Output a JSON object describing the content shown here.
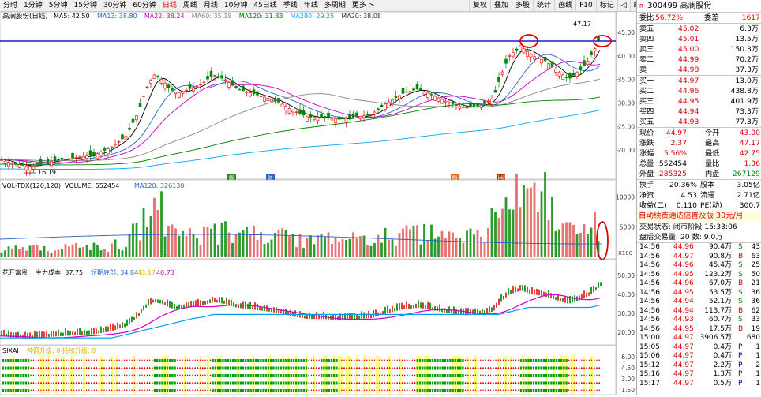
{
  "toolbar": {
    "periods": [
      "分时",
      "1分钟",
      "5分钟",
      "15分钟",
      "30分钟",
      "60分钟",
      "日线",
      "周线",
      "月线",
      "10分钟",
      "45日线",
      "季线",
      "年线",
      "多周期",
      "更多 >"
    ],
    "active_period": "日线",
    "tools": [
      "复权",
      "叠加",
      "多股",
      "统计",
      "画线",
      "F10",
      "标记",
      "◁",
      "⊠",
      "<",
      "◎",
      "退出"
    ]
  },
  "main_chart": {
    "title": "高澜股份(日线)",
    "ma": [
      {
        "label": "MA5: 42.50",
        "color": "#000000"
      },
      {
        "label": "MA13: 38.80",
        "color": "#2a63c9"
      },
      {
        "label": "MA22: 38.24",
        "color": "#c800c8"
      },
      {
        "label": "MA60: 35.18",
        "color": "#888888"
      },
      {
        "label": "MA120: 31.83",
        "color": "#008000"
      },
      {
        "label": "MA280: 29.25",
        "color": "#00aaff"
      },
      {
        "label": "MA20: 38.08",
        "color": "#333333"
      }
    ],
    "y_ticks": [
      "45.00",
      "40.00",
      "35.00",
      "30.00",
      "25.00",
      "20.00"
    ],
    "high_label": "47.17",
    "low_label": "16.19",
    "markers": [
      "紧",
      "财",
      "指",
      "业绩"
    ]
  },
  "volume_chart": {
    "title": "VOL-TDX(120,120)",
    "volume_label": "VOLUME: 552454",
    "ma_label": "MA120: 326130",
    "y_ticks": [
      "10000",
      "5000"
    ],
    "unit": "X100"
  },
  "cost_chart": {
    "title": "花开富贵",
    "cost_label": "主力成本: 37.75",
    "bottom_label": "短期底部: 34.84",
    "v1": "43.17",
    "v2": "40.73",
    "y_ticks": [
      "50.00",
      "40.00",
      "30.00",
      "20.00"
    ]
  },
  "signal_chart": {
    "title": "SIXAI",
    "legend": "神箭升级: 0 持续升级: 0",
    "y_ticks": [
      "6.00",
      "4.50",
      "3.00",
      "1.50"
    ]
  },
  "stock": {
    "code": "300499",
    "name": "高澜股份"
  },
  "order_ratio": {
    "l1": "委比",
    "v1": "56.72%",
    "l2": "委差",
    "v2": "1617"
  },
  "asks": [
    {
      "label": "卖五",
      "price": "45.02",
      "vol": "6.3万"
    },
    {
      "label": "卖四",
      "price": "45.01",
      "vol": "13.5万"
    },
    {
      "label": "卖三",
      "price": "45.00",
      "vol": "150.3万"
    },
    {
      "label": "卖二",
      "price": "44.99",
      "vol": "70.2万"
    },
    {
      "label": "卖一",
      "price": "44.98",
      "vol": "37.3万"
    }
  ],
  "bids": [
    {
      "label": "买一",
      "price": "44.97",
      "vol": "13.0万"
    },
    {
      "label": "买二",
      "price": "44.96",
      "vol": "438.8万"
    },
    {
      "label": "买三",
      "price": "44.95",
      "vol": "401.9万"
    },
    {
      "label": "买四",
      "price": "44.94",
      "vol": "73.3万"
    },
    {
      "label": "买五",
      "price": "44.93",
      "vol": "77.3万"
    }
  ],
  "quote": [
    {
      "l1": "现价",
      "v1": "44.97",
      "c1": "red",
      "l2": "今开",
      "v2": "43.00",
      "c2": "red"
    },
    {
      "l1": "涨跌",
      "v1": "2.37",
      "c1": "red",
      "l2": "最高",
      "v2": "47.17",
      "c2": "red"
    },
    {
      "l1": "涨幅",
      "v1": "5.56%",
      "c1": "red",
      "l2": "最低",
      "v2": "42.75",
      "c2": "red"
    },
    {
      "l1": "总量",
      "v1": "552454",
      "c1": "",
      "l2": "量比",
      "v2": "1.36",
      "c2": "red"
    },
    {
      "l1": "外盘",
      "v1": "285325",
      "c1": "red",
      "l2": "内盘",
      "v2": "267129",
      "c2": "green"
    }
  ],
  "fundamentals": [
    {
      "l1": "换手",
      "v1": "20.36%",
      "l2": "股本",
      "v2": "3.05亿"
    },
    {
      "l1": "净资",
      "v1": "4.53",
      "l2": "流通",
      "v2": "2.71亿"
    },
    {
      "l1": "收益(二)",
      "v1": "0.110",
      "l2": "PE(动)",
      "v2": "300.7"
    }
  ],
  "banner": "自动续费通达信普及版  30元/月",
  "trade_status": "交易状态: 闭市阶段 15:33:06",
  "after_hours": "盘后交易量: 20  数: 9.0万",
  "trades": [
    {
      "t": "14:56",
      "p": "44.96",
      "v": "90.4万",
      "s": "S",
      "n": "43"
    },
    {
      "t": "14:56",
      "p": "44.97",
      "v": "90.8万",
      "s": "B",
      "n": "63"
    },
    {
      "t": "14:56",
      "p": "44.96",
      "v": "45.4万",
      "s": "S",
      "n": "25"
    },
    {
      "t": "14:56",
      "p": "44.95",
      "v": "123.2万",
      "s": "S",
      "n": "50"
    },
    {
      "t": "14:56",
      "p": "44.96",
      "v": "67.0万",
      "s": "B",
      "n": "21"
    },
    {
      "t": "14:56",
      "p": "44.95",
      "v": "53.5万",
      "s": "S",
      "n": "36"
    },
    {
      "t": "14:56",
      "p": "44.94",
      "v": "52.1万",
      "s": "S",
      "n": "36"
    },
    {
      "t": "14:56",
      "p": "44.94",
      "v": "113.7万",
      "s": "B",
      "n": "62"
    },
    {
      "t": "14:56",
      "p": "44.93",
      "v": "60.7万",
      "s": "S",
      "n": "33"
    },
    {
      "t": "14:56",
      "p": "44.95",
      "v": "17.5万",
      "s": "B",
      "n": "19"
    },
    {
      "t": "15:00",
      "p": "44.97",
      "v": "3906.5万",
      "s": "",
      "n": "680"
    },
    {
      "t": "15:05",
      "p": "44.97",
      "v": "0.4万",
      "s": "P",
      "n": "1"
    },
    {
      "t": "15:06",
      "p": "44.97",
      "v": "0.4万",
      "s": "P",
      "n": "1"
    },
    {
      "t": "15:12",
      "p": "44.97",
      "v": "2.2万",
      "s": "P",
      "n": "2"
    },
    {
      "t": "15:16",
      "p": "44.97",
      "v": "1.3万",
      "s": "P",
      "n": "1"
    },
    {
      "t": "15:17",
      "p": "44.97",
      "v": "0.5万",
      "s": "P",
      "n": "1"
    }
  ],
  "colors": {
    "up": "#e60000",
    "down": "#008800",
    "cost_line": "#cc00cc",
    "bottom_line": "#00a0e9"
  }
}
